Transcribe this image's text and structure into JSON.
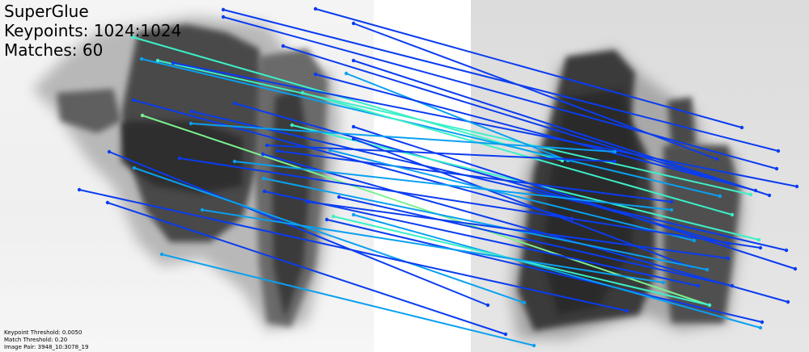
{
  "header": {
    "method": "SuperGlue",
    "keypoints": "Keypoints: 1024:1024",
    "matches": "Matches: 60"
  },
  "footer": {
    "keypoint_threshold": "Keypoint Threshold: 0.0050",
    "match_threshold": "Match Threshold: 0.20",
    "image_pair": "Image Pair: 3948_10:3078_19"
  },
  "images": {
    "left_id": "3948_10",
    "right_id": "3078_19"
  },
  "colors": {
    "low_confidence": "#0a3cf0",
    "mid_confidence": "#0aa0f0",
    "high_confidence": "#3cf0c8",
    "very_high_confidence": "#7cf090"
  }
}
